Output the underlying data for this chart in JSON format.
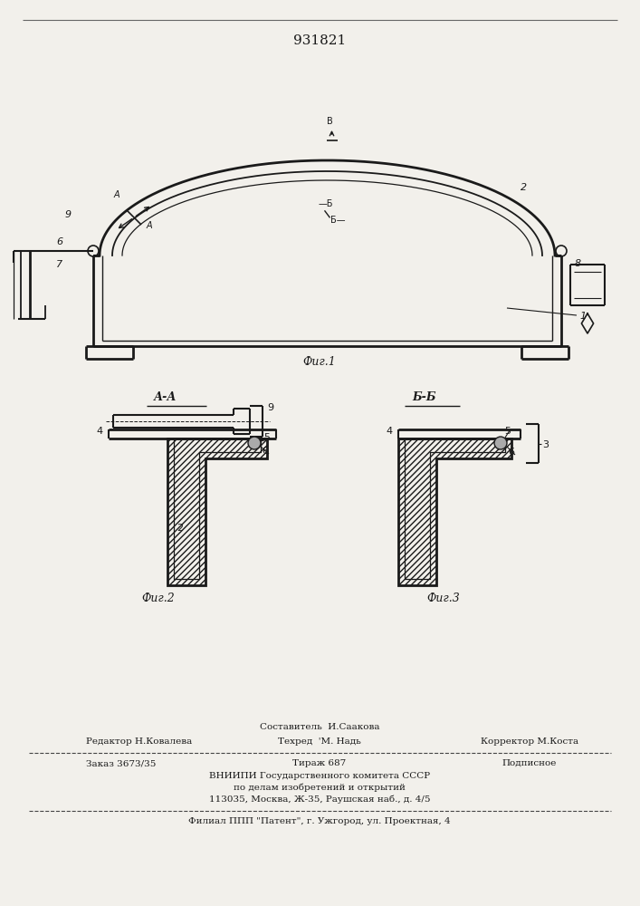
{
  "title": "931821",
  "fig1_label": "Фиг.1",
  "fig2_label": "Фиг.2",
  "fig3_label": "Фиг.3",
  "aa_label": "А-А",
  "bb_label": "Б-Б",
  "footer_top_center": "Составитель  И.Саакова",
  "footer_row1_left": "Редактор Н.Ковалева",
  "footer_row1_mid": "Техред  'М. Надь",
  "footer_row1_right": "Корректор М.Коста",
  "footer_row2_left": "Заказ 3673/35",
  "footer_row2_mid": "Тираж 687",
  "footer_row2_right": "Подписное",
  "footer_row3": "ВНИИПИ Государственного комитета СССР",
  "footer_row4": "по делам изобретений и открытий",
  "footer_row5": "113035, Москва, Ж-35, Раушская наб., д. 4/5",
  "footer_last": "Филиал ППП \"Патент\", г. Ужгород, ул. Проектная, 4",
  "bg_color": "#f2f0eb",
  "line_color": "#1a1a1a"
}
